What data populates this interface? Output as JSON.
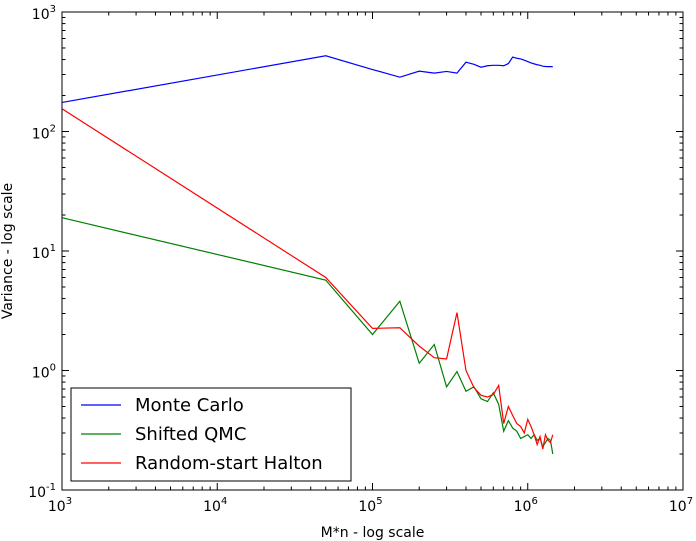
{
  "chart_data": {
    "type": "line",
    "xlabel": "M*n - log scale",
    "ylabel": "Variance - log scale",
    "xscale": "log",
    "yscale": "log",
    "xlim": [
      1000,
      10000000
    ],
    "ylim": [
      0.1,
      1000
    ],
    "x_ticks": [
      {
        "base": "10",
        "exp": "3",
        "value": 1000
      },
      {
        "base": "10",
        "exp": "4",
        "value": 10000
      },
      {
        "base": "10",
        "exp": "5",
        "value": 100000
      },
      {
        "base": "10",
        "exp": "6",
        "value": 1000000
      },
      {
        "base": "10",
        "exp": "7",
        "value": 10000000
      }
    ],
    "y_ticks": [
      {
        "base": "10",
        "exp": "-1",
        "value": 0.1
      },
      {
        "base": "10",
        "exp": "0",
        "value": 1
      },
      {
        "base": "10",
        "exp": "1",
        "value": 10
      },
      {
        "base": "10",
        "exp": "2",
        "value": 100
      },
      {
        "base": "10",
        "exp": "3",
        "value": 1000
      }
    ],
    "grid": false,
    "legend_position": "lower-left",
    "series": [
      {
        "name": "Monte Carlo",
        "color": "#0000ff",
        "x": [
          1000,
          50000,
          100000,
          150000,
          200000,
          250000,
          300000,
          350000,
          400000,
          450000,
          500000,
          550000,
          600000,
          650000,
          700000,
          750000,
          800000,
          850000,
          900000,
          950000,
          1000000,
          1050000,
          1100000,
          1150000,
          1200000,
          1250000,
          1300000,
          1350000,
          1400000,
          1450000
        ],
        "y": [
          175,
          430,
          330,
          285,
          320,
          308,
          318,
          308,
          380,
          365,
          345,
          355,
          358,
          358,
          355,
          370,
          420,
          410,
          405,
          395,
          385,
          375,
          368,
          362,
          358,
          352,
          350,
          349,
          349,
          348
        ]
      },
      {
        "name": "Shifted QMC",
        "color": "#008000",
        "x": [
          1000,
          50000,
          100000,
          150000,
          200000,
          250000,
          300000,
          350000,
          400000,
          450000,
          500000,
          550000,
          600000,
          650000,
          700000,
          750000,
          800000,
          850000,
          900000,
          950000,
          1000000,
          1050000,
          1100000,
          1150000,
          1200000,
          1250000,
          1300000,
          1350000,
          1400000,
          1450000
        ],
        "y": [
          19,
          5.7,
          2.0,
          3.8,
          1.15,
          1.65,
          0.73,
          0.98,
          0.67,
          0.73,
          0.58,
          0.55,
          0.65,
          0.52,
          0.31,
          0.38,
          0.33,
          0.31,
          0.27,
          0.28,
          0.29,
          0.27,
          0.29,
          0.26,
          0.27,
          0.23,
          0.25,
          0.27,
          0.26,
          0.2
        ]
      },
      {
        "name": "Random-start Halton",
        "color": "#ff0000",
        "x": [
          1000,
          50000,
          100000,
          150000,
          200000,
          250000,
          300000,
          350000,
          400000,
          450000,
          500000,
          550000,
          600000,
          650000,
          700000,
          750000,
          800000,
          850000,
          900000,
          950000,
          1000000,
          1050000,
          1100000,
          1150000,
          1200000,
          1250000,
          1300000,
          1350000,
          1400000,
          1450000
        ],
        "y": [
          155,
          6.0,
          2.25,
          2.28,
          1.6,
          1.28,
          1.25,
          3.05,
          1.0,
          0.72,
          0.62,
          0.6,
          0.63,
          0.75,
          0.36,
          0.5,
          0.42,
          0.36,
          0.34,
          0.3,
          0.39,
          0.34,
          0.29,
          0.24,
          0.28,
          0.22,
          0.29,
          0.26,
          0.25,
          0.29
        ]
      }
    ]
  }
}
